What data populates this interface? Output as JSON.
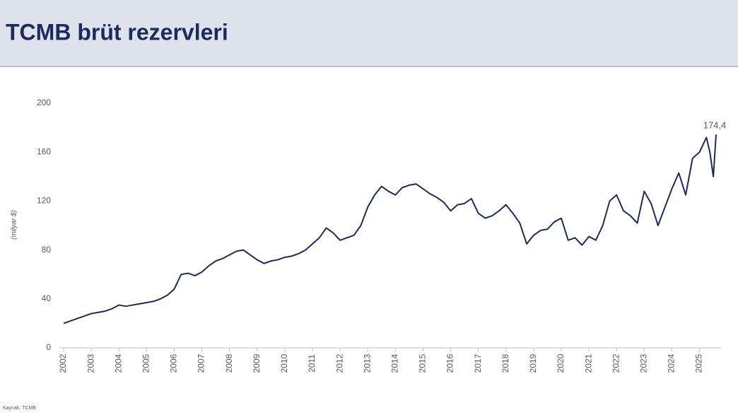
{
  "chart_data": {
    "type": "line",
    "title": "TCMB brüt rezervleri",
    "y_label": "(milyar $)",
    "source": "Kaynak: TCMB",
    "x": [
      2002,
      2002.25,
      2002.5,
      2002.75,
      2003,
      2003.25,
      2003.5,
      2003.75,
      2004,
      2004.25,
      2004.5,
      2004.75,
      2005,
      2005.25,
      2005.5,
      2005.75,
      2006,
      2006.25,
      2006.5,
      2006.75,
      2007,
      2007.25,
      2007.5,
      2007.75,
      2008,
      2008.25,
      2008.5,
      2008.75,
      2009,
      2009.25,
      2009.5,
      2009.75,
      2010,
      2010.25,
      2010.5,
      2010.75,
      2011,
      2011.25,
      2011.5,
      2011.75,
      2012,
      2012.25,
      2012.5,
      2012.75,
      2013,
      2013.25,
      2013.5,
      2013.75,
      2014,
      2014.25,
      2014.5,
      2014.75,
      2015,
      2015.25,
      2015.5,
      2015.75,
      2016,
      2016.25,
      2016.5,
      2016.75,
      2017,
      2017.25,
      2017.5,
      2017.75,
      2018,
      2018.25,
      2018.5,
      2018.75,
      2019,
      2019.25,
      2019.5,
      2019.75,
      2020,
      2020.25,
      2020.5,
      2020.75,
      2021,
      2021.25,
      2021.5,
      2021.75,
      2022,
      2022.25,
      2022.5,
      2022.75,
      2023,
      2023.25,
      2023.5,
      2023.75,
      2024,
      2024.25,
      2024.5,
      2024.75,
      2025,
      2025.25,
      2025.375,
      2025.5,
      2025.6
    ],
    "series": [
      {
        "name": "TCMB brüt rezervleri",
        "color": "#1f2a5c",
        "values": [
          20,
          22,
          24,
          26,
          28,
          29,
          30,
          32,
          35,
          34,
          35,
          36,
          37,
          38,
          40,
          43,
          48,
          60,
          61,
          59,
          62,
          67,
          71,
          73,
          76,
          79,
          80,
          76,
          72,
          69,
          71,
          72,
          74,
          75,
          77,
          80,
          85,
          90,
          98,
          94,
          88,
          90,
          92,
          100,
          115,
          125,
          132,
          128,
          125,
          131,
          133,
          134,
          130,
          126,
          123,
          119,
          112,
          117,
          118,
          122,
          110,
          106,
          108,
          112,
          117,
          110,
          102,
          85,
          92,
          96,
          97,
          103,
          106,
          88,
          90,
          84,
          91,
          88,
          100,
          120,
          125,
          112,
          108,
          102,
          128,
          118,
          100,
          115,
          130,
          143,
          125,
          155,
          160,
          172,
          160,
          140,
          174.4
        ]
      }
    ],
    "annotation": {
      "text": "174,4",
      "x": 2025.6,
      "y": 174.4
    },
    "xlim": [
      2002,
      2025.6
    ],
    "xticks": [
      2002,
      2003,
      2004,
      2005,
      2006,
      2007,
      2008,
      2009,
      2010,
      2011,
      2012,
      2013,
      2014,
      2015,
      2016,
      2017,
      2018,
      2019,
      2020,
      2021,
      2022,
      2023,
      2024,
      2025
    ],
    "ylim": [
      0,
      200
    ],
    "yticks": [
      0,
      40,
      80,
      120,
      160,
      200
    ],
    "grid": false
  }
}
